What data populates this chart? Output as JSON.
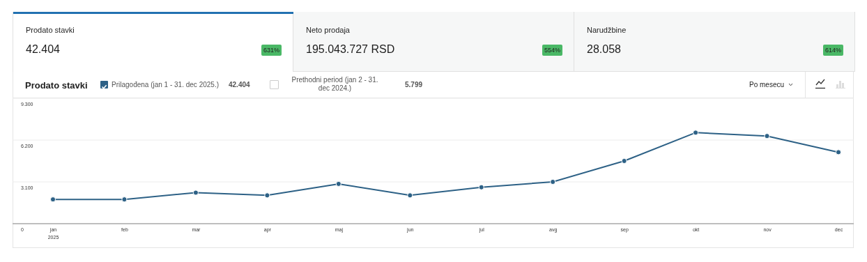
{
  "chart_data": [
    {
      "type": "other",
      "annotations": [
        "Prodato stavki",
        "42.404",
        "631%",
        "Neto prodaja",
        "195.043.727 RSD",
        "554%",
        "Narudžbine",
        "28.058",
        "614%"
      ]
    },
    {
      "type": "line",
      "title": "Prodato stavki",
      "categories": [
        "jan\n2025",
        "feb",
        "mar",
        "apr",
        "maj",
        "jun",
        "jul",
        "avg",
        "sep",
        "okt",
        "nov",
        "dec"
      ],
      "series": [
        {
          "name": "Prilagođena (jan 1 - 31. dec 2025.)",
          "color": "#2d6186",
          "values": [
            1800,
            1800,
            2300,
            2100,
            2950,
            2100,
            2700,
            3100,
            4650,
            6750,
            6500,
            5300
          ]
        }
      ],
      "ylim": [
        0,
        9300
      ],
      "yticks": [
        0,
        {
          "value": 3100,
          "label": "3.100"
        },
        {
          "value": 6200,
          "label": "6.200"
        },
        {
          "value": 9300,
          "label": "9.300"
        }
      ],
      "grid": "y",
      "legend": "top left",
      "marker": "circle",
      "line_style": "solid",
      "annotations": [
        "42.404",
        "Prethodni period (jan 2 - 31. dec 2024.)",
        "5.799",
        "Po mesecu"
      ]
    }
  ]
}
